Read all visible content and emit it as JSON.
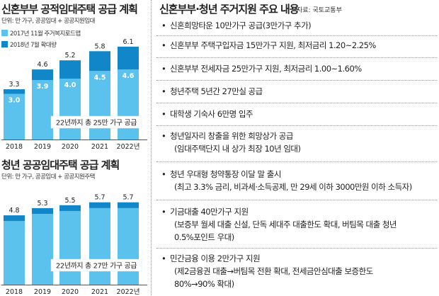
{
  "chart_data": [
    {
      "type": "bar",
      "stacked": true,
      "title": "신혼부부 공적임대주택 공급 계획",
      "unit_label": "단위: 만 가구, 공공임대 + 공공지원임대",
      "categories": [
        "2018",
        "2019",
        "2020",
        "2021",
        "2022년"
      ],
      "series": [
        {
          "name": "2017년 11월 주거복지로드맵",
          "values": [
            3.0,
            3.9,
            4.0,
            4.5,
            4.6
          ],
          "color": "#5bc2ee"
        },
        {
          "name": "2018년 7월 확대량",
          "values": [
            0.3,
            0.7,
            1.2,
            1.3,
            1.5
          ],
          "color": "#1187c9"
        }
      ],
      "totals": [
        "3.3",
        "4.6",
        "5.2",
        "5.8",
        "6.1"
      ],
      "inner_labels": [
        "3.0",
        "3.9",
        "4.0",
        "4.5",
        "4.6"
      ],
      "annotation": "22년까지 총 25만 가구 공급",
      "legend_position": "top-left"
    },
    {
      "type": "bar",
      "stacked": true,
      "title": "청년 공공임대주택 공급 계획",
      "unit_label": "단위: 만 가구, 공공임대 + 공공지원주택",
      "categories": [
        "2018",
        "2019",
        "2020",
        "2021",
        "2022년"
      ],
      "series": [
        {
          "values": [
            4.4,
            4.9,
            5.1,
            5.3,
            5.3
          ],
          "color": "#5bc2ee"
        },
        {
          "values": [
            0.4,
            0.4,
            0.4,
            0.4,
            0.4
          ],
          "color": "#1187c9"
        }
      ],
      "totals": [
        "4.8",
        "5.3",
        "5.5",
        "5.7",
        "5.7"
      ],
      "annotation": "22년까지 총 27만 가구 공급"
    }
  ],
  "support": {
    "title": "신혼부부·청년 주거지원 주요 내용",
    "source": "자료: 국토교통부",
    "bullet": "•",
    "items": [
      {
        "main": "신혼희망타운 10만가구 공급(3만가구 추가)"
      },
      {
        "main": "신혼부부 주택구입자금 15만가구 지원, 최저금리 1.20~2.25%"
      },
      {
        "main": "신혼부부 전세자금 25만가구 지원, 최저금리 1.00~1.60%"
      },
      {
        "main": "청년주택 5년간 27만실 공급"
      },
      {
        "main": "대학생 기숙사 6만명 입주"
      },
      {
        "main": "청년일자리 창출을 위한 희망상가 공급",
        "sub": [
          "(임대주택단지 내 상가 최장 10년 임대)"
        ]
      },
      {
        "main": "청년 우대형 청약통장 이달 말 출시",
        "sub": [
          "(최고 3.3% 금리, 비과세·소득공제, 만 29세 이하 3000만원 이하 소득자)"
        ]
      },
      {
        "main": "기금대출 40만가구 지원",
        "sub": [
          "(보증부 월세 대출 신설, 단독 세대주 대출한도 확대, 버팀목 대출 청년",
          "0.5%포인트 우대)"
        ]
      },
      {
        "main": "민간금융 이용 2만가구 지원",
        "sub": [
          "(제2금융권 대출→버팀목 전환 확대, 전세금안심대출 보증한도",
          "80%→90% 확대)"
        ]
      }
    ]
  }
}
